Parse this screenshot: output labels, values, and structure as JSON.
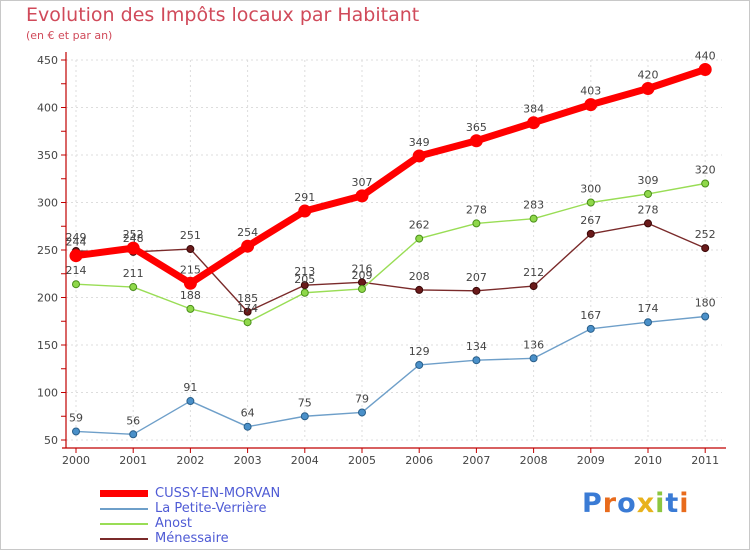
{
  "chart_data": {
    "type": "line",
    "title": "Evolution des Impôts locaux par Habitant",
    "subtitle": "(en € et par an)",
    "x": [
      "2000",
      "2001",
      "2002",
      "2003",
      "2004",
      "2005",
      "2006",
      "2007",
      "2008",
      "2009",
      "2010",
      "2011"
    ],
    "ylim": [
      50,
      450
    ],
    "yticks": [
      50,
      100,
      150,
      200,
      250,
      300,
      350,
      400,
      450
    ],
    "grid": true,
    "legend_position": "bottom-left",
    "series": [
      {
        "name": "CUSSY-EN-MORVAN",
        "color": "#ff0000",
        "values": [
          244,
          252,
          215,
          254,
          291,
          307,
          349,
          365,
          384,
          403,
          420,
          440
        ]
      },
      {
        "name": "La Petite-Verrière",
        "color": "#6e9fc9",
        "values": [
          59,
          56,
          91,
          64,
          75,
          79,
          129,
          134,
          136,
          167,
          174,
          180
        ]
      },
      {
        "name": "Anost",
        "color": "#99dd55",
        "values": [
          214,
          211,
          188,
          174,
          205,
          209,
          262,
          278,
          283,
          300,
          309,
          320
        ]
      },
      {
        "name": "Ménessaire",
        "color": "#7a2a2a",
        "values": [
          249,
          248,
          251,
          185,
          213,
          216,
          208,
          207,
          212,
          267,
          278,
          252
        ]
      }
    ]
  },
  "brand": {
    "text": "Proxiti"
  }
}
